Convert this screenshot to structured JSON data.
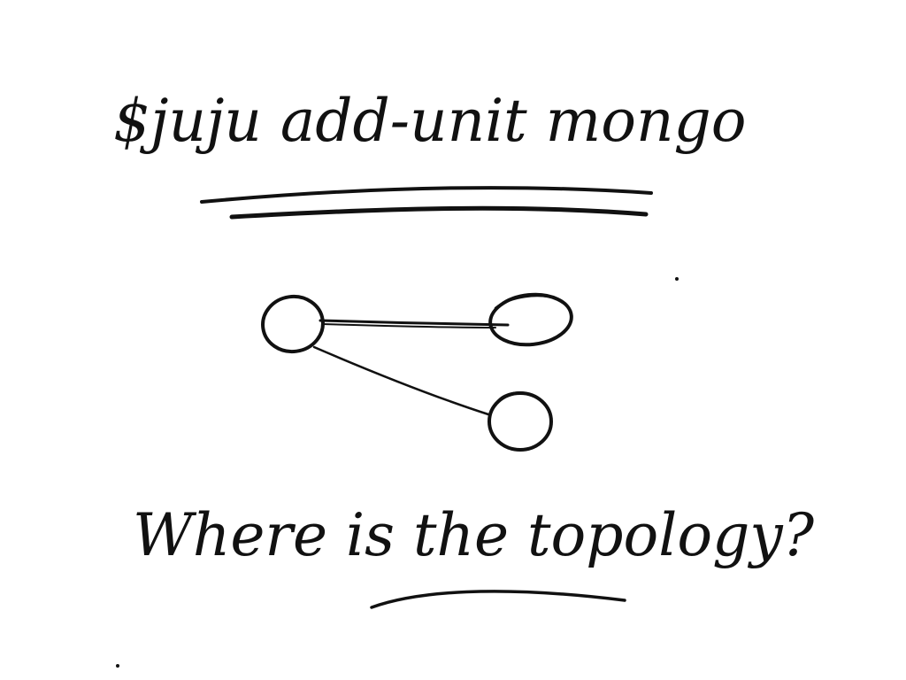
{
  "sketch": {
    "command": "$juju add-unit mongo",
    "question": "Where is the topology?",
    "ink_color": "#111111",
    "background_color": "#ffffff"
  },
  "diagram": {
    "nodes": [
      {
        "id": "unit-a"
      },
      {
        "id": "unit-b"
      },
      {
        "id": "unit-c"
      }
    ],
    "edges": [
      {
        "from": "unit-a",
        "to": "unit-b"
      },
      {
        "from": "unit-a",
        "to": "unit-c"
      }
    ]
  }
}
